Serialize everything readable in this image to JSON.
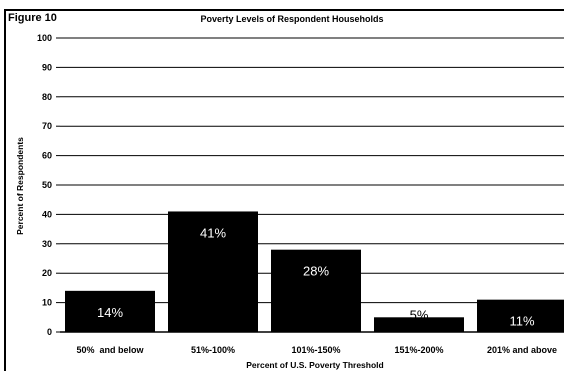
{
  "figure_label": "Figure 10",
  "chart_data": {
    "type": "bar",
    "title": "Poverty Levels of Respondent Households",
    "xlabel": "Percent of U.S. Poverty Threshold",
    "ylabel": "Percent of Respondents",
    "categories": [
      "50%  and below",
      "51%-100%",
      "101%-150%",
      "151%-200%",
      "201% and above"
    ],
    "values": [
      14,
      41,
      28,
      5,
      11
    ],
    "data_labels": [
      "14%",
      "41%",
      "28%",
      "5%",
      "11%"
    ],
    "ylim": [
      0,
      100
    ],
    "yticks": [
      0,
      10,
      20,
      30,
      40,
      50,
      60,
      70,
      80,
      90,
      100
    ],
    "grid": true,
    "legend": "none",
    "bar_color": "#000000",
    "label_color": "#ffffff"
  }
}
